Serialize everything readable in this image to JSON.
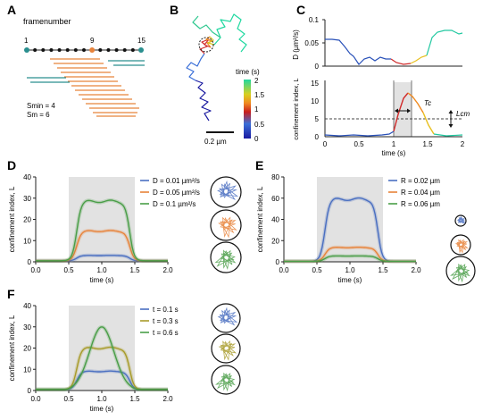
{
  "panels": {
    "A": {
      "label": "A",
      "title": "framenumber",
      "ticks": [
        "1",
        "9",
        "15"
      ],
      "smin": "Smin = 4",
      "sm": "Sm = 6"
    },
    "B": {
      "label": "B",
      "cbar_title": "time (s)",
      "cbar_ticks": [
        "0",
        "0.5",
        "1",
        "1.5",
        "2"
      ],
      "scale": "0.2 µm"
    },
    "C": {
      "label": "C",
      "top_ylabel": "D (µm²/s)",
      "top_yticks": [
        "0",
        "0.05",
        "0.1"
      ],
      "bot_ylabel": "confinement index, L",
      "bot_yticks": [
        "0",
        "5",
        "10",
        "15"
      ],
      "xticks": [
        "0",
        "0.5",
        "1",
        "1.5",
        "2"
      ],
      "xlabel": "time (s)",
      "tc": "Tc",
      "lcm": "Lcm"
    },
    "D": {
      "label": "D"
    },
    "E": {
      "label": "E"
    },
    "F": {
      "label": "F"
    }
  },
  "colors": {
    "blue": "#4a6fc1",
    "orange": "#e8833a",
    "green": "#4a9e48",
    "olive": "#a89b2a",
    "teal": "#2a8f8f",
    "shade": "#e2e2e2"
  },
  "chart_data": [
    {
      "type": "line",
      "panel": "D",
      "xlabel": "time (s)",
      "ylabel": "confinement index, L",
      "xlim": [
        0,
        2
      ],
      "ylim": [
        0,
        40
      ],
      "xticks": [
        "0.0",
        "0.5",
        "1.0",
        "1.5",
        "2.0"
      ],
      "yticks": [
        "0",
        "10",
        "20",
        "30",
        "40"
      ],
      "shaded_interval": [
        0.5,
        1.5
      ],
      "series": [
        {
          "name": "D = 0.01 µm²/s",
          "color": "#4a6fc1",
          "plateau": 3,
          "baseline": 0.5
        },
        {
          "name": "D = 0.05 µm²/s",
          "color": "#e8833a",
          "plateau": 14.5,
          "baseline": 0.5
        },
        {
          "name": "D = 0.1 µm²/s",
          "color": "#4a9e48",
          "plateau": 28.5,
          "baseline": 0.5
        }
      ]
    },
    {
      "type": "line",
      "panel": "E",
      "xlabel": "time (s)",
      "ylabel": "confinement index, L",
      "xlim": [
        0,
        2
      ],
      "ylim": [
        0,
        80
      ],
      "xticks": [
        "0.0",
        "0.5",
        "1.0",
        "1.5",
        "2.0"
      ],
      "yticks": [
        "0",
        "20",
        "40",
        "60",
        "80"
      ],
      "shaded_interval": [
        0.5,
        1.5
      ],
      "series": [
        {
          "name": "R = 0.02 µm",
          "color": "#4a6fc1",
          "plateau": 59,
          "baseline": 0.5
        },
        {
          "name": "R = 0.04 µm",
          "color": "#e8833a",
          "plateau": 13.5,
          "baseline": 0.5
        },
        {
          "name": "R = 0.06 µm",
          "color": "#4a9e48",
          "plateau": 5.5,
          "baseline": 0.5
        }
      ]
    },
    {
      "type": "line",
      "panel": "F",
      "xlabel": "time (s)",
      "ylabel": "confinement index, L",
      "xlim": [
        0,
        2
      ],
      "ylim": [
        0,
        40
      ],
      "xticks": [
        "0.0",
        "0.5",
        "1.0",
        "1.5",
        "2.0"
      ],
      "yticks": [
        "0",
        "10",
        "20",
        "30",
        "40"
      ],
      "shaded_interval": [
        0.5,
        1.5
      ],
      "series": [
        {
          "name": "t = 0.1 s",
          "color": "#4a6fc1",
          "plateau": 9,
          "baseline": 0.5,
          "shape": "flat"
        },
        {
          "name": "t = 0.3 s",
          "color": "#a89b2a",
          "plateau": 20,
          "baseline": 0.5,
          "shape": "flat"
        },
        {
          "name": "t = 0.6 s",
          "color": "#4a9e48",
          "plateau": 30,
          "baseline": 0.5,
          "shape": "peak"
        }
      ]
    }
  ]
}
